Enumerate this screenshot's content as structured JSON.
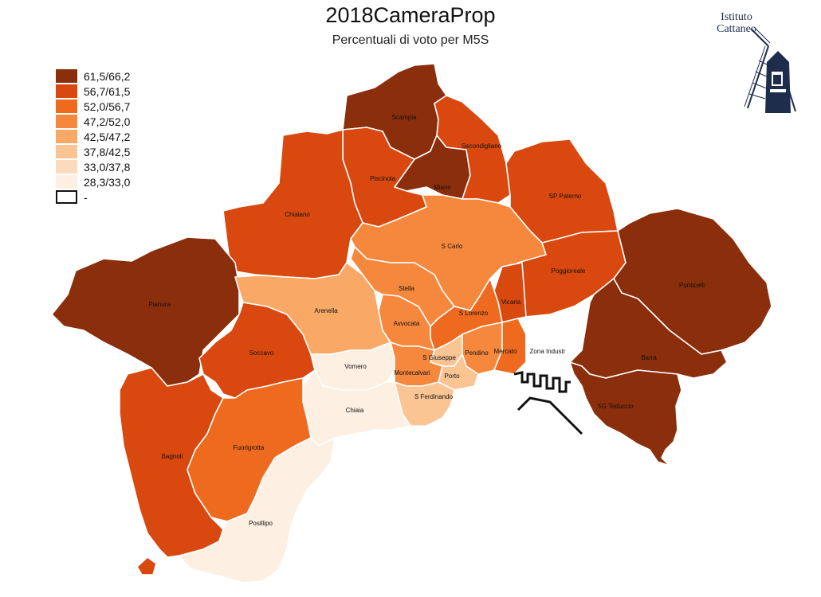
{
  "title": "2018CameraProp",
  "subtitle": "Percentuali di voto per M5S",
  "logo": {
    "line1": "Istituto",
    "line2": "Cattaneo",
    "icon": "windmill-icon"
  },
  "legend": [
    {
      "label": "61,5/66,2",
      "color": "#8b2e0c"
    },
    {
      "label": "56,7/61,5",
      "color": "#d9480f"
    },
    {
      "label": "52,0/56,7",
      "color": "#ee6a1f"
    },
    {
      "label": "47,2/52,0",
      "color": "#f6883e"
    },
    {
      "label": "42,5/47,2",
      "color": "#f9a866"
    },
    {
      "label": "37,8/42,5",
      "color": "#fbc493"
    },
    {
      "label": "33,0/37,8",
      "color": "#fcdbbd"
    },
    {
      "label": "28,3/33,0",
      "color": "#fdefe2"
    },
    {
      "label": "-",
      "color": "#ffffff"
    }
  ],
  "districts": {
    "scampia": {
      "label": "Scampia",
      "class": 0
    },
    "miano": {
      "label": "Miano",
      "class": 0
    },
    "secondigliano": {
      "label": "Secondigliano",
      "class": 1
    },
    "piscinola": {
      "label": "Piscinola",
      "class": 1
    },
    "chiaiano": {
      "label": "Chiaiano",
      "class": 1
    },
    "sp_paterno": {
      "label": "SP Paterno",
      "class": 1
    },
    "s_carlo": {
      "label": "S Carlo",
      "class": 3
    },
    "poggioreale": {
      "label": "Poggioreale",
      "class": 1
    },
    "ponticelli": {
      "label": "Ponticelli",
      "class": 0
    },
    "pianura": {
      "label": "Pianura",
      "class": 0
    },
    "arenella": {
      "label": "Arenella",
      "class": 4
    },
    "stella": {
      "label": "Stella",
      "class": 3
    },
    "vicaria": {
      "label": "Vicaria",
      "class": 1
    },
    "s_lorenzo": {
      "label": "S Lorenzo",
      "class": 2
    },
    "avvocata": {
      "label": "Avvocata",
      "class": 3
    },
    "soccavo": {
      "label": "Soccavo",
      "class": 1
    },
    "vomero": {
      "label": "Vomero",
      "class": 7
    },
    "s_giuseppe": {
      "label": "S Giuseppe",
      "class": 5
    },
    "pendino": {
      "label": "Pendino",
      "class": 3
    },
    "mercato": {
      "label": "Mercato",
      "class": 2
    },
    "zona_industriale": {
      "label": "Zona Industr",
      "class": 8
    },
    "barra": {
      "label": "Barra",
      "class": 0
    },
    "montecalvario": {
      "label": "Montecalvari",
      "class": 3
    },
    "porto": {
      "label": "Porto",
      "class": 5
    },
    "s_ferdinando": {
      "label": "S Ferdinando",
      "class": 5
    },
    "chiaia": {
      "label": "Chiaia",
      "class": 7
    },
    "sg_teduccio": {
      "label": "SG Teduccio",
      "class": 0
    },
    "bagnoli": {
      "label": "Bagnoli",
      "class": 1
    },
    "fuorigrotta": {
      "label": "Fuorigrotta",
      "class": 2
    },
    "posillipo": {
      "label": "Posillipo",
      "class": 7
    }
  }
}
